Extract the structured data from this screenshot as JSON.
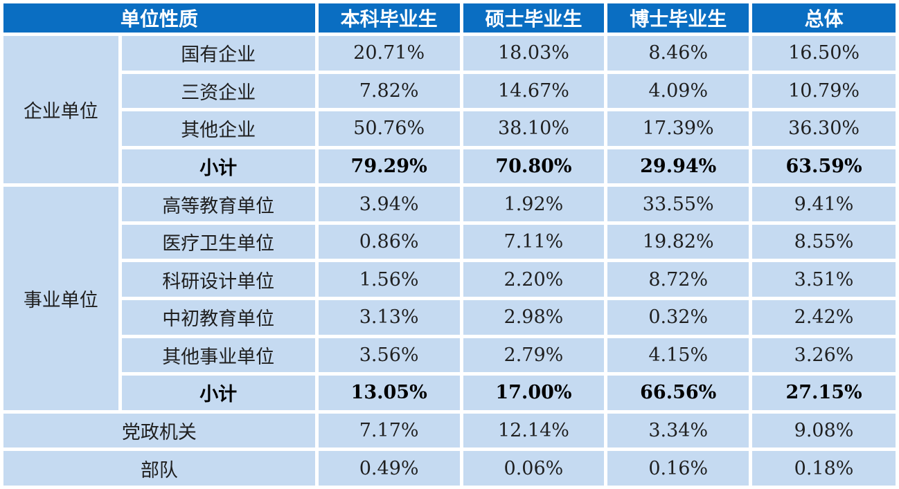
{
  "header": {
    "col_type": "单位性质",
    "col_bachelor": "本科毕业生",
    "col_master": "硕士毕业生",
    "col_doctor": "博士毕业生",
    "col_total": "总体"
  },
  "groups": {
    "enterprise": {
      "label": "企业单位",
      "rows": [
        {
          "name": "国有企业",
          "bachelor": "20.71%",
          "master": "18.03%",
          "doctor": "8.46%",
          "total": "16.50%"
        },
        {
          "name": "三资企业",
          "bachelor": "7.82%",
          "master": "14.67%",
          "doctor": "4.09%",
          "total": "10.79%"
        },
        {
          "name": "其他企业",
          "bachelor": "50.76%",
          "master": "38.10%",
          "doctor": "17.39%",
          "total": "36.30%"
        }
      ],
      "subtotal": {
        "name": "小计",
        "bachelor": "79.29%",
        "master": "70.80%",
        "doctor": "29.94%",
        "total": "63.59%"
      }
    },
    "institution": {
      "label": "事业单位",
      "rows": [
        {
          "name": "高等教育单位",
          "bachelor": "3.94%",
          "master": "1.92%",
          "doctor": "33.55%",
          "total": "9.41%"
        },
        {
          "name": "医疗卫生单位",
          "bachelor": "0.86%",
          "master": "7.11%",
          "doctor": "19.82%",
          "total": "8.55%"
        },
        {
          "name": "科研设计单位",
          "bachelor": "1.56%",
          "master": "2.20%",
          "doctor": "8.72%",
          "total": "3.51%"
        },
        {
          "name": "中初教育单位",
          "bachelor": "3.13%",
          "master": "2.98%",
          "doctor": "0.32%",
          "total": "2.42%"
        },
        {
          "name": "其他事业单位",
          "bachelor": "3.56%",
          "master": "2.79%",
          "doctor": "4.15%",
          "total": "3.26%"
        }
      ],
      "subtotal": {
        "name": "小计",
        "bachelor": "13.05%",
        "master": "17.00%",
        "doctor": "66.56%",
        "total": "27.15%"
      }
    }
  },
  "standalone": [
    {
      "name": "党政机关",
      "bachelor": "7.17%",
      "master": "12.14%",
      "doctor": "3.34%",
      "total": "9.08%"
    },
    {
      "name": "部队",
      "bachelor": "0.49%",
      "master": "0.06%",
      "doctor": "0.16%",
      "total": "0.18%"
    }
  ],
  "colors": {
    "header_bg": "#0a6ec2",
    "header_text": "#ffffff",
    "cell_bg": "#c5daf1"
  }
}
